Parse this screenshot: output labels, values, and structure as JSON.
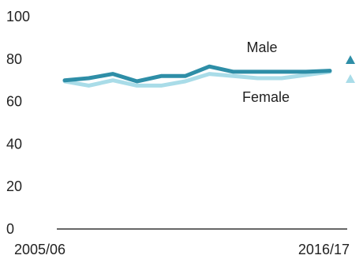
{
  "chart_data": {
    "type": "line",
    "title": "",
    "xlabel": "",
    "ylabel": "",
    "ylim": [
      0,
      100
    ],
    "yticks": [
      0,
      20,
      40,
      60,
      80,
      100
    ],
    "x_tick_labels": [
      "2005/06",
      "2016/17"
    ],
    "grid": false,
    "series": [
      {
        "name": "Male",
        "color": "#2e8ea7",
        "values": [
          70,
          71,
          73,
          69.5,
          72,
          72,
          76.5,
          74,
          74,
          74,
          74,
          74.5
        ]
      },
      {
        "name": "Female",
        "color": "#a9dce8",
        "values": [
          69.5,
          67.5,
          70,
          67.5,
          67.5,
          69.5,
          73,
          72,
          71,
          71,
          72.5,
          74
        ]
      }
    ],
    "legend": [
      {
        "label": "Male",
        "color": "#2e8ea7",
        "marker": "triangle-icon"
      },
      {
        "label": "Female",
        "color": "#a9dce8",
        "marker": "triangle-icon"
      }
    ]
  }
}
